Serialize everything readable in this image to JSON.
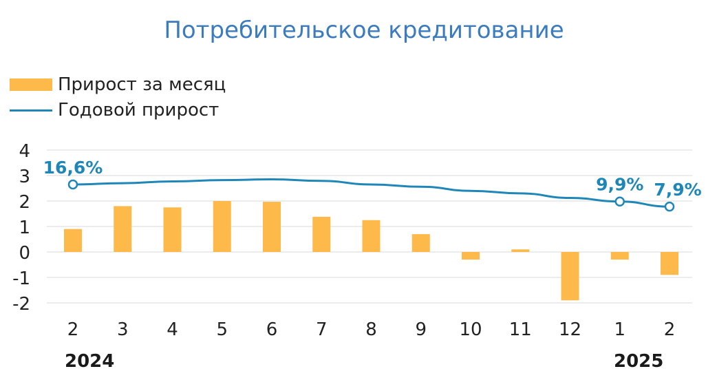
{
  "chart_data": {
    "type": "bar",
    "title": "Потребительское кредитование",
    "categories": [
      "2",
      "3",
      "4",
      "5",
      "6",
      "7",
      "8",
      "9",
      "10",
      "11",
      "12",
      "1",
      "2"
    ],
    "year_labels": {
      "start": "2024",
      "end": "2025"
    },
    "series": [
      {
        "name": "Прирост за месяц",
        "type": "bar",
        "color": "#fdb94a",
        "values": [
          0.9,
          1.8,
          1.75,
          2.0,
          1.97,
          1.38,
          1.25,
          0.7,
          -0.3,
          0.1,
          -1.9,
          -0.3,
          -0.9
        ]
      },
      {
        "name": "Годовой прирост",
        "type": "line",
        "color": "#1f87b8",
        "values": [
          2.65,
          2.7,
          2.77,
          2.82,
          2.85,
          2.79,
          2.65,
          2.56,
          2.4,
          2.3,
          2.12,
          1.98,
          1.78
        ]
      }
    ],
    "annotations": [
      {
        "index": 0,
        "text": "16,6%"
      },
      {
        "index": 11,
        "text": "9,9%"
      },
      {
        "index": 12,
        "text": "7,9%"
      }
    ],
    "yticks": [
      "4",
      "3",
      "2",
      "1",
      "0",
      "-1",
      "-2"
    ],
    "ylim": [
      -2,
      4
    ],
    "grid": true,
    "legend_position": "top-left",
    "colors": {
      "title": "#3b7bbf",
      "grid": "#d9d9d9",
      "text": "#222222"
    }
  }
}
